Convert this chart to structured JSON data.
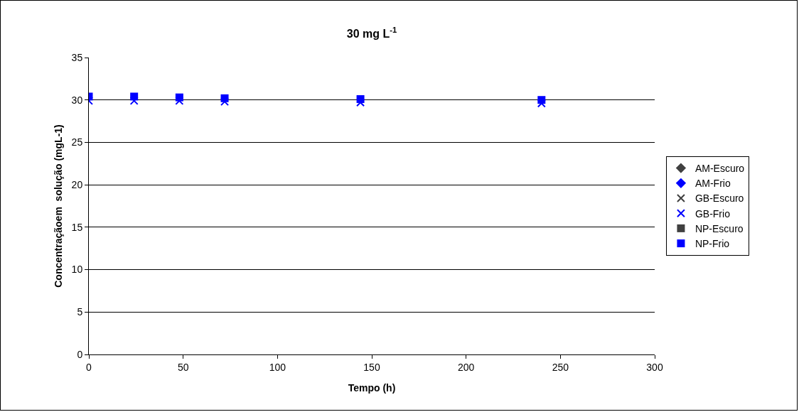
{
  "chart_data": {
    "type": "scatter",
    "title": "30 mg L$^{-1}$",
    "xlabel": "Tempo (h)",
    "ylabel": "Concentraçãoem  solução (mgL-1)",
    "x": [
      0,
      24,
      48,
      72,
      144,
      240
    ],
    "series": [
      {
        "name": "AM-Escuro",
        "color": "#404040",
        "marker": "diamond",
        "values": [
          null,
          null,
          null,
          null,
          null,
          null
        ]
      },
      {
        "name": "AM-Frio",
        "color": "#0000ff",
        "marker": "diamond",
        "values": [
          null,
          null,
          null,
          null,
          null,
          null
        ]
      },
      {
        "name": "GB-Escuro",
        "color": "#404040",
        "marker": "cross",
        "values": [
          null,
          null,
          null,
          null,
          null,
          null
        ]
      },
      {
        "name": "GB-Frio",
        "color": "#0000ff",
        "marker": "cross",
        "values": [
          29.9,
          29.9,
          29.9,
          29.8,
          29.7,
          29.6
        ]
      },
      {
        "name": "NP-Escuro",
        "color": "#404040",
        "marker": "square",
        "values": [
          null,
          null,
          null,
          null,
          null,
          null
        ]
      },
      {
        "name": "NP-Frio",
        "color": "#0000ff",
        "marker": "square",
        "values": [
          30.4,
          30.4,
          30.3,
          30.2,
          30.1,
          30.0
        ]
      }
    ],
    "xlim": [
      0,
      300
    ],
    "xticks": [
      0,
      50,
      100,
      150,
      200,
      250,
      300
    ],
    "ylim": [
      0,
      35
    ],
    "yticks": [
      0,
      5,
      10,
      15,
      20,
      25,
      30,
      35
    ],
    "grid": "y",
    "legend": "right"
  }
}
